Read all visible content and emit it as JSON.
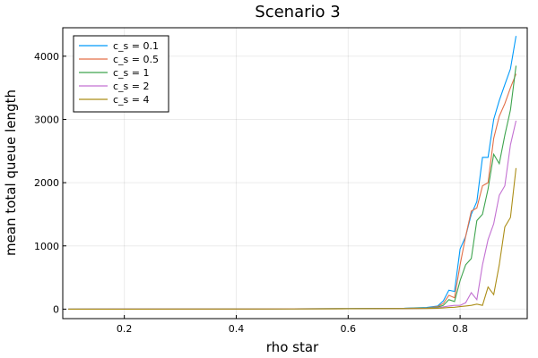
{
  "chart_data": {
    "type": "line",
    "title": "Scenario 3",
    "xlabel": "rho star",
    "ylabel": "mean total queue length",
    "xlim": [
      0.09,
      0.92
    ],
    "ylim": [
      -150,
      4450
    ],
    "xticks": [
      0.2,
      0.4,
      0.6,
      0.8
    ],
    "xtick_labels": [
      "0.2",
      "0.4",
      "0.6",
      "0.8"
    ],
    "yticks": [
      0,
      1000,
      2000,
      3000,
      4000
    ],
    "ytick_labels": [
      "0",
      "1000",
      "2000",
      "3000",
      "4000"
    ],
    "grid": true,
    "legend_position": "top-left",
    "x": [
      0.1,
      0.2,
      0.3,
      0.4,
      0.5,
      0.6,
      0.7,
      0.74,
      0.76,
      0.77,
      0.78,
      0.79,
      0.8,
      0.81,
      0.82,
      0.83,
      0.84,
      0.85,
      0.86,
      0.87,
      0.88,
      0.89,
      0.9
    ],
    "series": [
      {
        "name": "c_s = 0.1",
        "color": "#009AFA",
        "values": [
          0,
          1,
          2,
          3,
          5,
          8,
          14,
          25,
          50,
          130,
          300,
          280,
          950,
          1150,
          1500,
          1700,
          2400,
          2400,
          3000,
          3300,
          3550,
          3800,
          4320
        ]
      },
      {
        "name": "c_s = 0.5",
        "color": "#E36F47",
        "values": [
          0,
          1,
          2,
          3,
          5,
          8,
          12,
          20,
          40,
          90,
          220,
          180,
          700,
          1150,
          1550,
          1600,
          1950,
          2000,
          2700,
          3050,
          3250,
          3500,
          3720
        ]
      },
      {
        "name": "c_s = 1",
        "color": "#3EA44E",
        "values": [
          0,
          1,
          2,
          3,
          4,
          7,
          11,
          18,
          30,
          60,
          150,
          120,
          450,
          700,
          800,
          1400,
          1500,
          1900,
          2450,
          2300,
          2750,
          3150,
          3850
        ]
      },
      {
        "name": "c_s = 2",
        "color": "#C371D2",
        "values": [
          0,
          1,
          1,
          2,
          4,
          6,
          9,
          14,
          20,
          35,
          50,
          60,
          60,
          100,
          260,
          150,
          700,
          1100,
          1350,
          1800,
          1950,
          2600,
          2980
        ]
      },
      {
        "name": "c_s = 4",
        "color": "#AC8E18",
        "values": [
          0,
          0,
          1,
          2,
          3,
          5,
          8,
          10,
          14,
          18,
          25,
          30,
          40,
          50,
          60,
          80,
          60,
          350,
          230,
          700,
          1300,
          1450,
          2230
        ]
      }
    ]
  }
}
